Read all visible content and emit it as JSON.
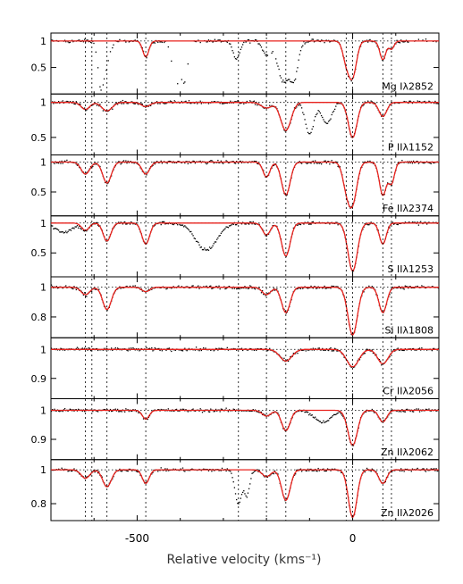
{
  "chart_data": {
    "type": "line",
    "xlabel": "Relative velocity (kms⁻¹)",
    "x_ticks": [
      -500,
      0
    ],
    "xlim": [
      -700,
      200
    ],
    "component_velocities": [
      -620,
      -605,
      -570,
      -480,
      -265,
      -200,
      -155,
      -15,
      0,
      70,
      90
    ],
    "colors": {
      "data": "#000000",
      "model": "#e8231e",
      "grid": "#000000"
    },
    "panels": [
      {
        "label": "Mg Iλ2852",
        "ylim": [
          0.0,
          1.15
        ],
        "y_ticks": [
          {
            "value": 1,
            "label": "1"
          },
          {
            "value": 0.5,
            "label": "0.5"
          }
        ],
        "model_lines": [
          {
            "v": -480,
            "depth": 0.3,
            "width": 7
          },
          {
            "v": -15,
            "depth": 0.35,
            "width": 8
          },
          {
            "v": 0,
            "depth": 0.65,
            "width": 9
          },
          {
            "v": 70,
            "depth": 0.35,
            "width": 7
          },
          {
            "v": 90,
            "depth": 0.15,
            "width": 6
          }
        ],
        "extra_lines": [
          {
            "v": -585,
            "depth": 0.6,
            "width": 6
          },
          {
            "v": -575,
            "depth": 0.5,
            "width": 10
          },
          {
            "v": -410,
            "depth": 0.8,
            "width": 9
          },
          {
            "v": -390,
            "depth": 0.7,
            "width": 8
          },
          {
            "v": -270,
            "depth": 0.35,
            "width": 8
          },
          {
            "v": -200,
            "depth": 0.25,
            "width": 9
          },
          {
            "v": -160,
            "depth": 0.75,
            "width": 14
          },
          {
            "v": -135,
            "depth": 0.6,
            "width": 9
          }
        ],
        "gaps": [
          [
            -700,
            -640
          ],
          [
            -600,
            -520
          ],
          [
            -440,
            -340
          ],
          [
            -200,
            -175
          ],
          [
            130,
            200
          ]
        ]
      },
      {
        "label": "P IIλ1152",
        "ylim": [
          0.25,
          1.12
        ],
        "y_ticks": [
          {
            "value": 1,
            "label": "1"
          },
          {
            "value": 0.5,
            "label": "0.5"
          }
        ],
        "model_lines": [
          {
            "v": -620,
            "depth": 0.1,
            "width": 10
          },
          {
            "v": -570,
            "depth": 0.12,
            "width": 12
          },
          {
            "v": -480,
            "depth": 0.06,
            "width": 10
          },
          {
            "v": -200,
            "depth": 0.08,
            "width": 12
          },
          {
            "v": -155,
            "depth": 0.4,
            "width": 12
          },
          {
            "v": 0,
            "depth": 0.5,
            "width": 10
          },
          {
            "v": 70,
            "depth": 0.2,
            "width": 9
          }
        ],
        "extra_lines": [
          {
            "v": -100,
            "depth": 0.45,
            "width": 10
          },
          {
            "v": -60,
            "depth": 0.3,
            "width": 12
          }
        ],
        "gaps": []
      },
      {
        "label": "Fe IIλ2374",
        "ylim": [
          0.1,
          1.12
        ],
        "y_ticks": [
          {
            "value": 1,
            "label": "1"
          },
          {
            "value": 0.5,
            "label": "0.5"
          }
        ],
        "model_lines": [
          {
            "v": -620,
            "depth": 0.2,
            "width": 10
          },
          {
            "v": -570,
            "depth": 0.35,
            "width": 10
          },
          {
            "v": -480,
            "depth": 0.2,
            "width": 9
          },
          {
            "v": -200,
            "depth": 0.25,
            "width": 8
          },
          {
            "v": -155,
            "depth": 0.55,
            "width": 10
          },
          {
            "v": -15,
            "depth": 0.35,
            "width": 9
          },
          {
            "v": 0,
            "depth": 0.65,
            "width": 10
          },
          {
            "v": 70,
            "depth": 0.55,
            "width": 8
          },
          {
            "v": 90,
            "depth": 0.35,
            "width": 7
          }
        ],
        "extra_lines": [],
        "gaps": []
      },
      {
        "label": "S IIλ1253",
        "ylim": [
          0.1,
          1.12
        ],
        "y_ticks": [
          {
            "value": 1,
            "label": "1"
          },
          {
            "value": 0.5,
            "label": "0.5"
          }
        ],
        "model_lines": [
          {
            "v": -620,
            "depth": 0.12,
            "width": 9
          },
          {
            "v": -570,
            "depth": 0.3,
            "width": 9
          },
          {
            "v": -480,
            "depth": 0.35,
            "width": 9
          },
          {
            "v": -200,
            "depth": 0.2,
            "width": 9
          },
          {
            "v": -155,
            "depth": 0.55,
            "width": 10
          },
          {
            "v": 0,
            "depth": 0.8,
            "width": 11
          },
          {
            "v": 70,
            "depth": 0.35,
            "width": 8
          }
        ],
        "extra_lines": [
          {
            "v": -340,
            "depth": 0.45,
            "width": 25
          },
          {
            "v": -670,
            "depth": 0.15,
            "width": 20
          }
        ],
        "gaps": []
      },
      {
        "label": "Si IIλ1808",
        "ylim": [
          0.66,
          1.07
        ],
        "y_ticks": [
          {
            "value": 1,
            "label": "1"
          },
          {
            "value": 0.8,
            "label": "0.8"
          }
        ],
        "model_lines": [
          {
            "v": -620,
            "depth": 0.05,
            "width": 10
          },
          {
            "v": -570,
            "depth": 0.15,
            "width": 10
          },
          {
            "v": -480,
            "depth": 0.03,
            "width": 9
          },
          {
            "v": -200,
            "depth": 0.05,
            "width": 10
          },
          {
            "v": -155,
            "depth": 0.17,
            "width": 10
          },
          {
            "v": 0,
            "depth": 0.32,
            "width": 11
          },
          {
            "v": 70,
            "depth": 0.17,
            "width": 9
          }
        ],
        "extra_lines": [],
        "gaps": []
      },
      {
        "label": "Cr IIλ2056",
        "ylim": [
          0.83,
          1.04
        ],
        "y_ticks": [
          {
            "value": 1,
            "label": "1"
          },
          {
            "value": 0.9,
            "label": "0.9"
          }
        ],
        "model_lines": [
          {
            "v": -155,
            "depth": 0.04,
            "width": 14
          },
          {
            "v": 0,
            "depth": 0.06,
            "width": 14
          },
          {
            "v": 70,
            "depth": 0.05,
            "width": 12
          }
        ],
        "extra_lines": [],
        "gaps": []
      },
      {
        "label": "Zn IIλ2062",
        "ylim": [
          0.83,
          1.04
        ],
        "y_ticks": [
          {
            "value": 1,
            "label": "1"
          },
          {
            "value": 0.9,
            "label": "0.9"
          }
        ],
        "model_lines": [
          {
            "v": -480,
            "depth": 0.03,
            "width": 8
          },
          {
            "v": -200,
            "depth": 0.02,
            "width": 10
          },
          {
            "v": -155,
            "depth": 0.07,
            "width": 10
          },
          {
            "v": 0,
            "depth": 0.12,
            "width": 11
          },
          {
            "v": 70,
            "depth": 0.04,
            "width": 9
          }
        ],
        "extra_lines": [
          {
            "v": -70,
            "depth": 0.04,
            "width": 20
          }
        ],
        "gaps": []
      },
      {
        "label": "Zn IIλ2026",
        "ylim": [
          0.7,
          1.06
        ],
        "y_ticks": [
          {
            "value": 1,
            "label": "1"
          },
          {
            "value": 0.8,
            "label": "0.8"
          }
        ],
        "model_lines": [
          {
            "v": -620,
            "depth": 0.05,
            "width": 10
          },
          {
            "v": -570,
            "depth": 0.1,
            "width": 10
          },
          {
            "v": -480,
            "depth": 0.08,
            "width": 8
          },
          {
            "v": -200,
            "depth": 0.04,
            "width": 10
          },
          {
            "v": -155,
            "depth": 0.18,
            "width": 10
          },
          {
            "v": 0,
            "depth": 0.28,
            "width": 10
          },
          {
            "v": 70,
            "depth": 0.08,
            "width": 9
          }
        ],
        "extra_lines": [
          {
            "v": -265,
            "depth": 0.2,
            "width": 8
          },
          {
            "v": -245,
            "depth": 0.15,
            "width": 6
          }
        ],
        "gaps": []
      }
    ]
  }
}
